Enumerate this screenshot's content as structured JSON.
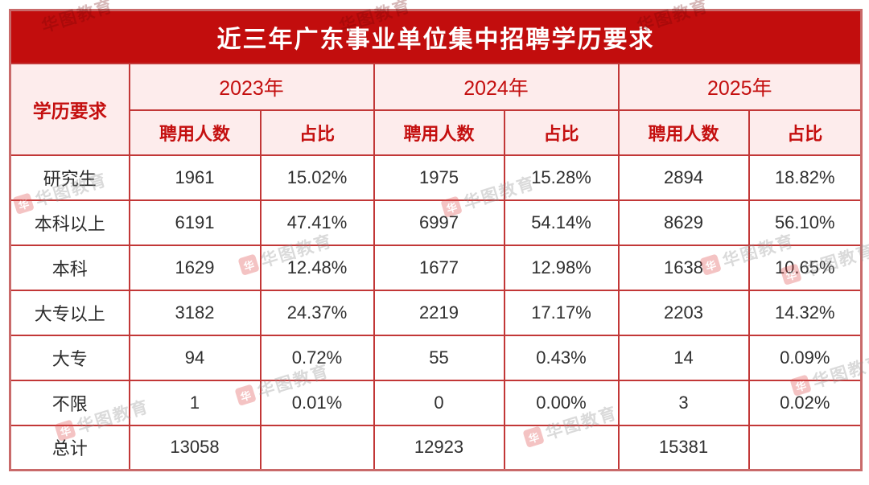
{
  "title": "近三年广东事业单位集中招聘学历要求",
  "colors": {
    "title_bg": "#c20d0d",
    "header_bg": "#fdecec",
    "header_text": "#c40f0f",
    "grid_border": "#c23737",
    "outer_border": "#c96a6a",
    "body_text": "#2f2f2f"
  },
  "table": {
    "row_header_label": "学历要求",
    "year_groups": [
      {
        "year": "2023年",
        "columns": [
          "聘用人数",
          "占比"
        ]
      },
      {
        "year": "2024年",
        "columns": [
          "聘用人数",
          "占比"
        ]
      },
      {
        "year": "2025年",
        "columns": [
          "聘用人数",
          "占比"
        ]
      }
    ],
    "rows": [
      {
        "label": "研究生",
        "values": [
          "1961",
          "15.02%",
          "1975",
          "15.28%",
          "2894",
          "18.82%"
        ]
      },
      {
        "label": "本科以上",
        "values": [
          "6191",
          "47.41%",
          "6997",
          "54.14%",
          "8629",
          "56.10%"
        ]
      },
      {
        "label": "本科",
        "values": [
          "1629",
          "12.48%",
          "1677",
          "12.98%",
          "1638",
          "10.65%"
        ]
      },
      {
        "label": "大专以上",
        "values": [
          "3182",
          "24.37%",
          "2219",
          "17.17%",
          "2203",
          "14.32%"
        ]
      },
      {
        "label": "大专",
        "values": [
          "94",
          "0.72%",
          "55",
          "0.43%",
          "14",
          "0.09%"
        ]
      },
      {
        "label": "不限",
        "values": [
          "1",
          "0.01%",
          "0",
          "0.00%",
          "3",
          "0.02%"
        ]
      },
      {
        "label": "总计",
        "values": [
          "13058",
          "",
          "12923",
          "",
          "15381",
          ""
        ]
      }
    ]
  },
  "watermark": {
    "logo_char": "华",
    "text": "华图教育"
  },
  "chart_data": {
    "type": "table",
    "title": "近三年广东事业单位集中招聘学历要求",
    "row_header": "学历要求",
    "column_groups": [
      "2023年",
      "2024年",
      "2025年"
    ],
    "columns": [
      "2023年 聘用人数",
      "2023年 占比",
      "2024年 聘用人数",
      "2024年 占比",
      "2025年 聘用人数",
      "2025年 占比"
    ],
    "rows": [
      [
        "研究生",
        1961,
        "15.02%",
        1975,
        "15.28%",
        2894,
        "18.82%"
      ],
      [
        "本科以上",
        6191,
        "47.41%",
        6997,
        "54.14%",
        8629,
        "56.10%"
      ],
      [
        "本科",
        1629,
        "12.48%",
        1677,
        "12.98%",
        1638,
        "10.65%"
      ],
      [
        "大专以上",
        3182,
        "24.37%",
        2219,
        "17.17%",
        2203,
        "14.32%"
      ],
      [
        "大专",
        94,
        "0.72%",
        55,
        "0.43%",
        14,
        "0.09%"
      ],
      [
        "不限",
        1,
        "0.01%",
        0,
        "0.00%",
        3,
        "0.02%"
      ],
      [
        "总计",
        13058,
        "",
        12923,
        "",
        15381,
        ""
      ]
    ]
  }
}
